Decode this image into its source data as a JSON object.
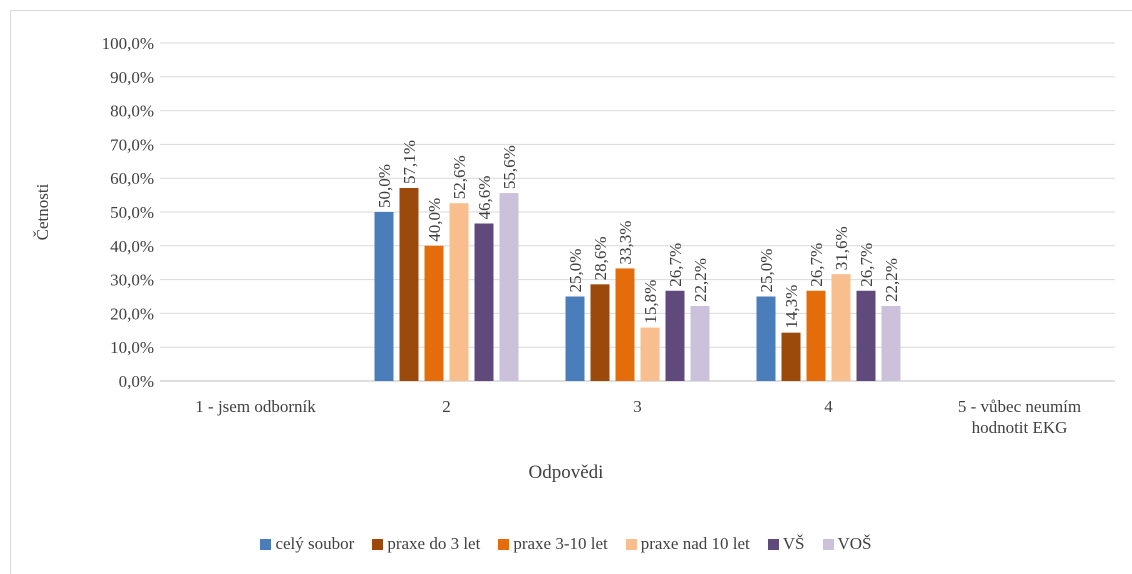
{
  "chart_data": {
    "type": "bar",
    "categories": [
      "1 - jsem odborník",
      "2",
      "3",
      "4",
      "5 - vůbec neumím hodnotit EKG"
    ],
    "series": [
      {
        "name": "celý soubor",
        "color": "#4a7ebb",
        "values": [
          null,
          50.0,
          25.0,
          25.0,
          null
        ],
        "value_labels": [
          null,
          "50,0%",
          "25,0%",
          "25,0%",
          null
        ]
      },
      {
        "name": "praxe do 3 let",
        "color": "#9c4a0b",
        "values": [
          null,
          57.1,
          28.6,
          14.3,
          null
        ],
        "value_labels": [
          null,
          "57,1%",
          "28,6%",
          "14,3%",
          null
        ]
      },
      {
        "name": "praxe 3-10 let",
        "color": "#e46c0a",
        "values": [
          null,
          40.0,
          33.3,
          26.7,
          null
        ],
        "value_labels": [
          null,
          "40,0%",
          "33,3%",
          "26,7%",
          null
        ]
      },
      {
        "name": "praxe nad 10 let",
        "color": "#f9be8e",
        "values": [
          null,
          52.6,
          15.8,
          31.6,
          null
        ],
        "value_labels": [
          null,
          "52,6%",
          "15,8%",
          "31,6%",
          null
        ]
      },
      {
        "name": "VŠ",
        "color": "#604a7b",
        "values": [
          null,
          46.6,
          26.7,
          26.7,
          null
        ],
        "value_labels": [
          null,
          "46,6%",
          "26,7%",
          "26,7%",
          null
        ]
      },
      {
        "name": "VOŠ",
        "color": "#ccc1da",
        "values": [
          null,
          55.6,
          22.2,
          22.2,
          null
        ],
        "value_labels": [
          null,
          "55,6%",
          "22,2%",
          "22,2%",
          null
        ]
      }
    ],
    "x_label": "Odpovědi",
    "y_label": "Četnosti",
    "ylim": [
      0,
      100
    ],
    "yticks": [
      {
        "value": 0,
        "label": "0,0%"
      },
      {
        "value": 10,
        "label": "10,0%"
      },
      {
        "value": 20,
        "label": "20,0%"
      },
      {
        "value": 30,
        "label": "30,0%"
      },
      {
        "value": 40,
        "label": "40,0%"
      },
      {
        "value": 50,
        "label": "50,0%"
      },
      {
        "value": 60,
        "label": "60,0%"
      },
      {
        "value": 70,
        "label": "70,0%"
      },
      {
        "value": 80,
        "label": "80,0%"
      },
      {
        "value": 90,
        "label": "90,0%"
      },
      {
        "value": 100,
        "label": "100,0%"
      }
    ],
    "grid": true,
    "legend": "bottom"
  }
}
